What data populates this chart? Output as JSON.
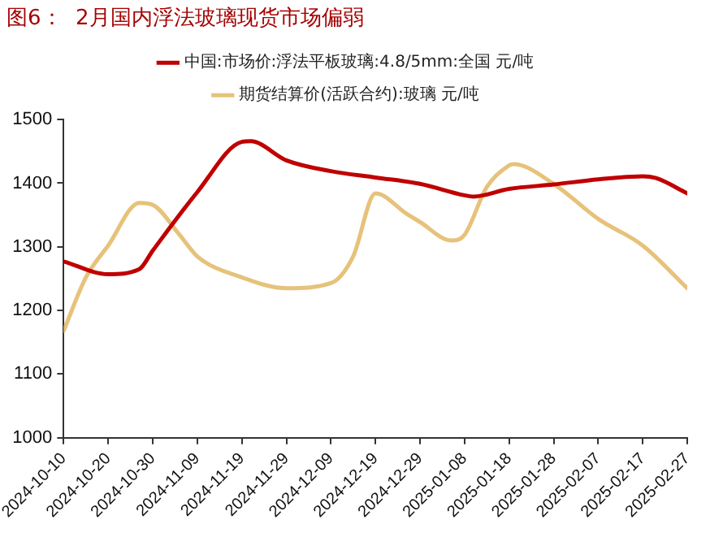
{
  "chart_data": {
    "type": "line",
    "title": "图6：  2月国内浮法玻璃现货市场偏弱",
    "xlim": [
      "2024-10-10",
      "2025-02-27"
    ],
    "xticks": [
      "2024-10-10",
      "2024-10-20",
      "2024-10-30",
      "2024-11-09",
      "2024-11-19",
      "2024-11-29",
      "2024-12-09",
      "2024-12-19",
      "2024-12-29",
      "2025-01-08",
      "2025-01-18",
      "2025-01-28",
      "2025-02-07",
      "2025-02-17",
      "2025-02-27"
    ],
    "ylim": [
      1000,
      1500
    ],
    "yticks": [
      1000,
      1100,
      1200,
      1300,
      1400,
      1500
    ],
    "grid": false,
    "legend": "top",
    "marker": "none",
    "line_style": "solid",
    "series": [
      {
        "name": "中国:市场价:浮法平板玻璃:4.8/5mm:全国 元/吨",
        "color": "#c00000",
        "x": [
          "2024-10-10",
          "2024-10-20",
          "2024-10-27",
          "2024-10-30",
          "2024-11-09",
          "2024-11-19",
          "2024-11-21",
          "2024-11-29",
          "2024-12-09",
          "2024-12-19",
          "2024-12-29",
          "2025-01-08",
          "2025-01-10",
          "2025-01-18",
          "2025-01-28",
          "2025-02-07",
          "2025-02-17",
          "2025-02-20",
          "2025-02-27"
        ],
        "values": [
          1277,
          1257,
          1265,
          1294,
          1386,
          1465,
          1466,
          1436,
          1419,
          1409,
          1399,
          1381,
          1379,
          1391,
          1398,
          1406,
          1411,
          1408,
          1384
        ]
      },
      {
        "name": "期货结算价(活跃合约):玻璃 元/吨",
        "color": "#e6c27a",
        "x": [
          "2024-10-10",
          "2024-10-15",
          "2024-10-20",
          "2024-10-27",
          "2024-10-30",
          "2024-11-05",
          "2024-11-09",
          "2024-11-19",
          "2024-11-29",
          "2024-12-09",
          "2024-12-14",
          "2024-12-19",
          "2024-12-26",
          "2024-12-29",
          "2025-01-05",
          "2025-01-08",
          "2025-01-13",
          "2025-01-18",
          "2025-01-19",
          "2025-01-28",
          "2025-02-07",
          "2025-02-17",
          "2025-02-27"
        ],
        "values": [
          1168,
          1252,
          1302,
          1369,
          1366,
          1319,
          1285,
          1252,
          1235,
          1243,
          1285,
          1384,
          1352,
          1339,
          1310,
          1319,
          1394,
          1428,
          1430,
          1399,
          1344,
          1302,
          1235
        ]
      }
    ]
  }
}
